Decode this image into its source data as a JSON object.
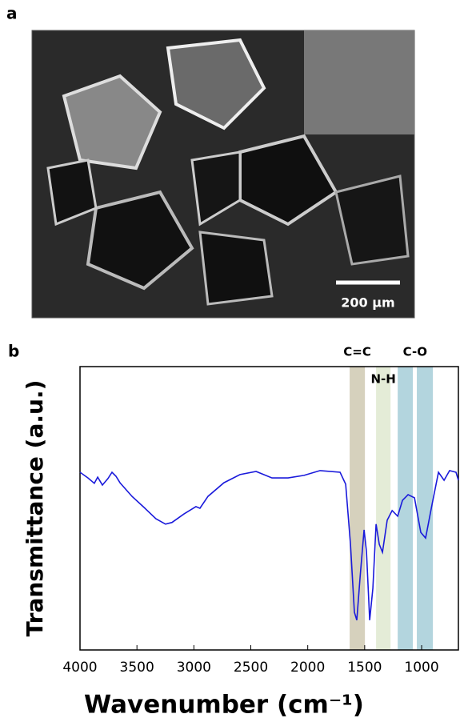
{
  "panel_a": {
    "label": "a",
    "scale_bar": "200 µm"
  },
  "chart_data": {
    "type": "line",
    "panel_label": "b",
    "x_label": "Wavenumber (cm⁻¹)",
    "y_label": "Transmittance (a.u.)",
    "xlim": [
      4000,
      677
    ],
    "xticks": [
      4000,
      3500,
      3000,
      2500,
      2000,
      1500,
      1000
    ],
    "ylim": [
      0,
      100
    ],
    "bands": [
      {
        "label": "C=C",
        "spans": [
          [
            1632,
            1498
          ]
        ],
        "color": "#d6d1bd"
      },
      {
        "label": "N-H",
        "spans": [
          [
            1400,
            1273
          ]
        ],
        "color": "#e4ecd7"
      },
      {
        "label": "C-O",
        "spans": [
          [
            1210,
            1077
          ],
          [
            1042,
            901
          ]
        ],
        "color": "#b3d5de"
      }
    ],
    "series": [
      {
        "color": "#1a1adb",
        "x": [
          4000,
          3930,
          3874,
          3845,
          3803,
          3754,
          3719,
          3684,
          3649,
          3543,
          3438,
          3333,
          3249,
          3192,
          3087,
          2982,
          2947,
          2876,
          2736,
          2595,
          2454,
          2314,
          2173,
          2033,
          1892,
          1716,
          1667,
          1625,
          1590,
          1569,
          1540,
          1505,
          1484,
          1456,
          1428,
          1400,
          1372,
          1344,
          1302,
          1259,
          1210,
          1168,
          1119,
          1063,
          1007,
          965,
          908,
          852,
          803,
          754,
          698,
          677
        ],
        "values": [
          62.7,
          60.7,
          58.8,
          61,
          58.2,
          60.5,
          62.7,
          61.3,
          59,
          54.2,
          50.3,
          46.3,
          44.4,
          45,
          48,
          50.6,
          50,
          54.2,
          59,
          61.9,
          63,
          60.7,
          60.7,
          61.6,
          63.3,
          62.7,
          58.5,
          37.3,
          13.3,
          10.5,
          26,
          42.4,
          34.7,
          10.5,
          21.8,
          44.4,
          37.3,
          34.5,
          45.8,
          49.2,
          47.2,
          52.8,
          54.8,
          53.7,
          41.5,
          39.5,
          51.4,
          62.7,
          59.9,
          63.3,
          62.7,
          59.9
        ]
      }
    ]
  }
}
